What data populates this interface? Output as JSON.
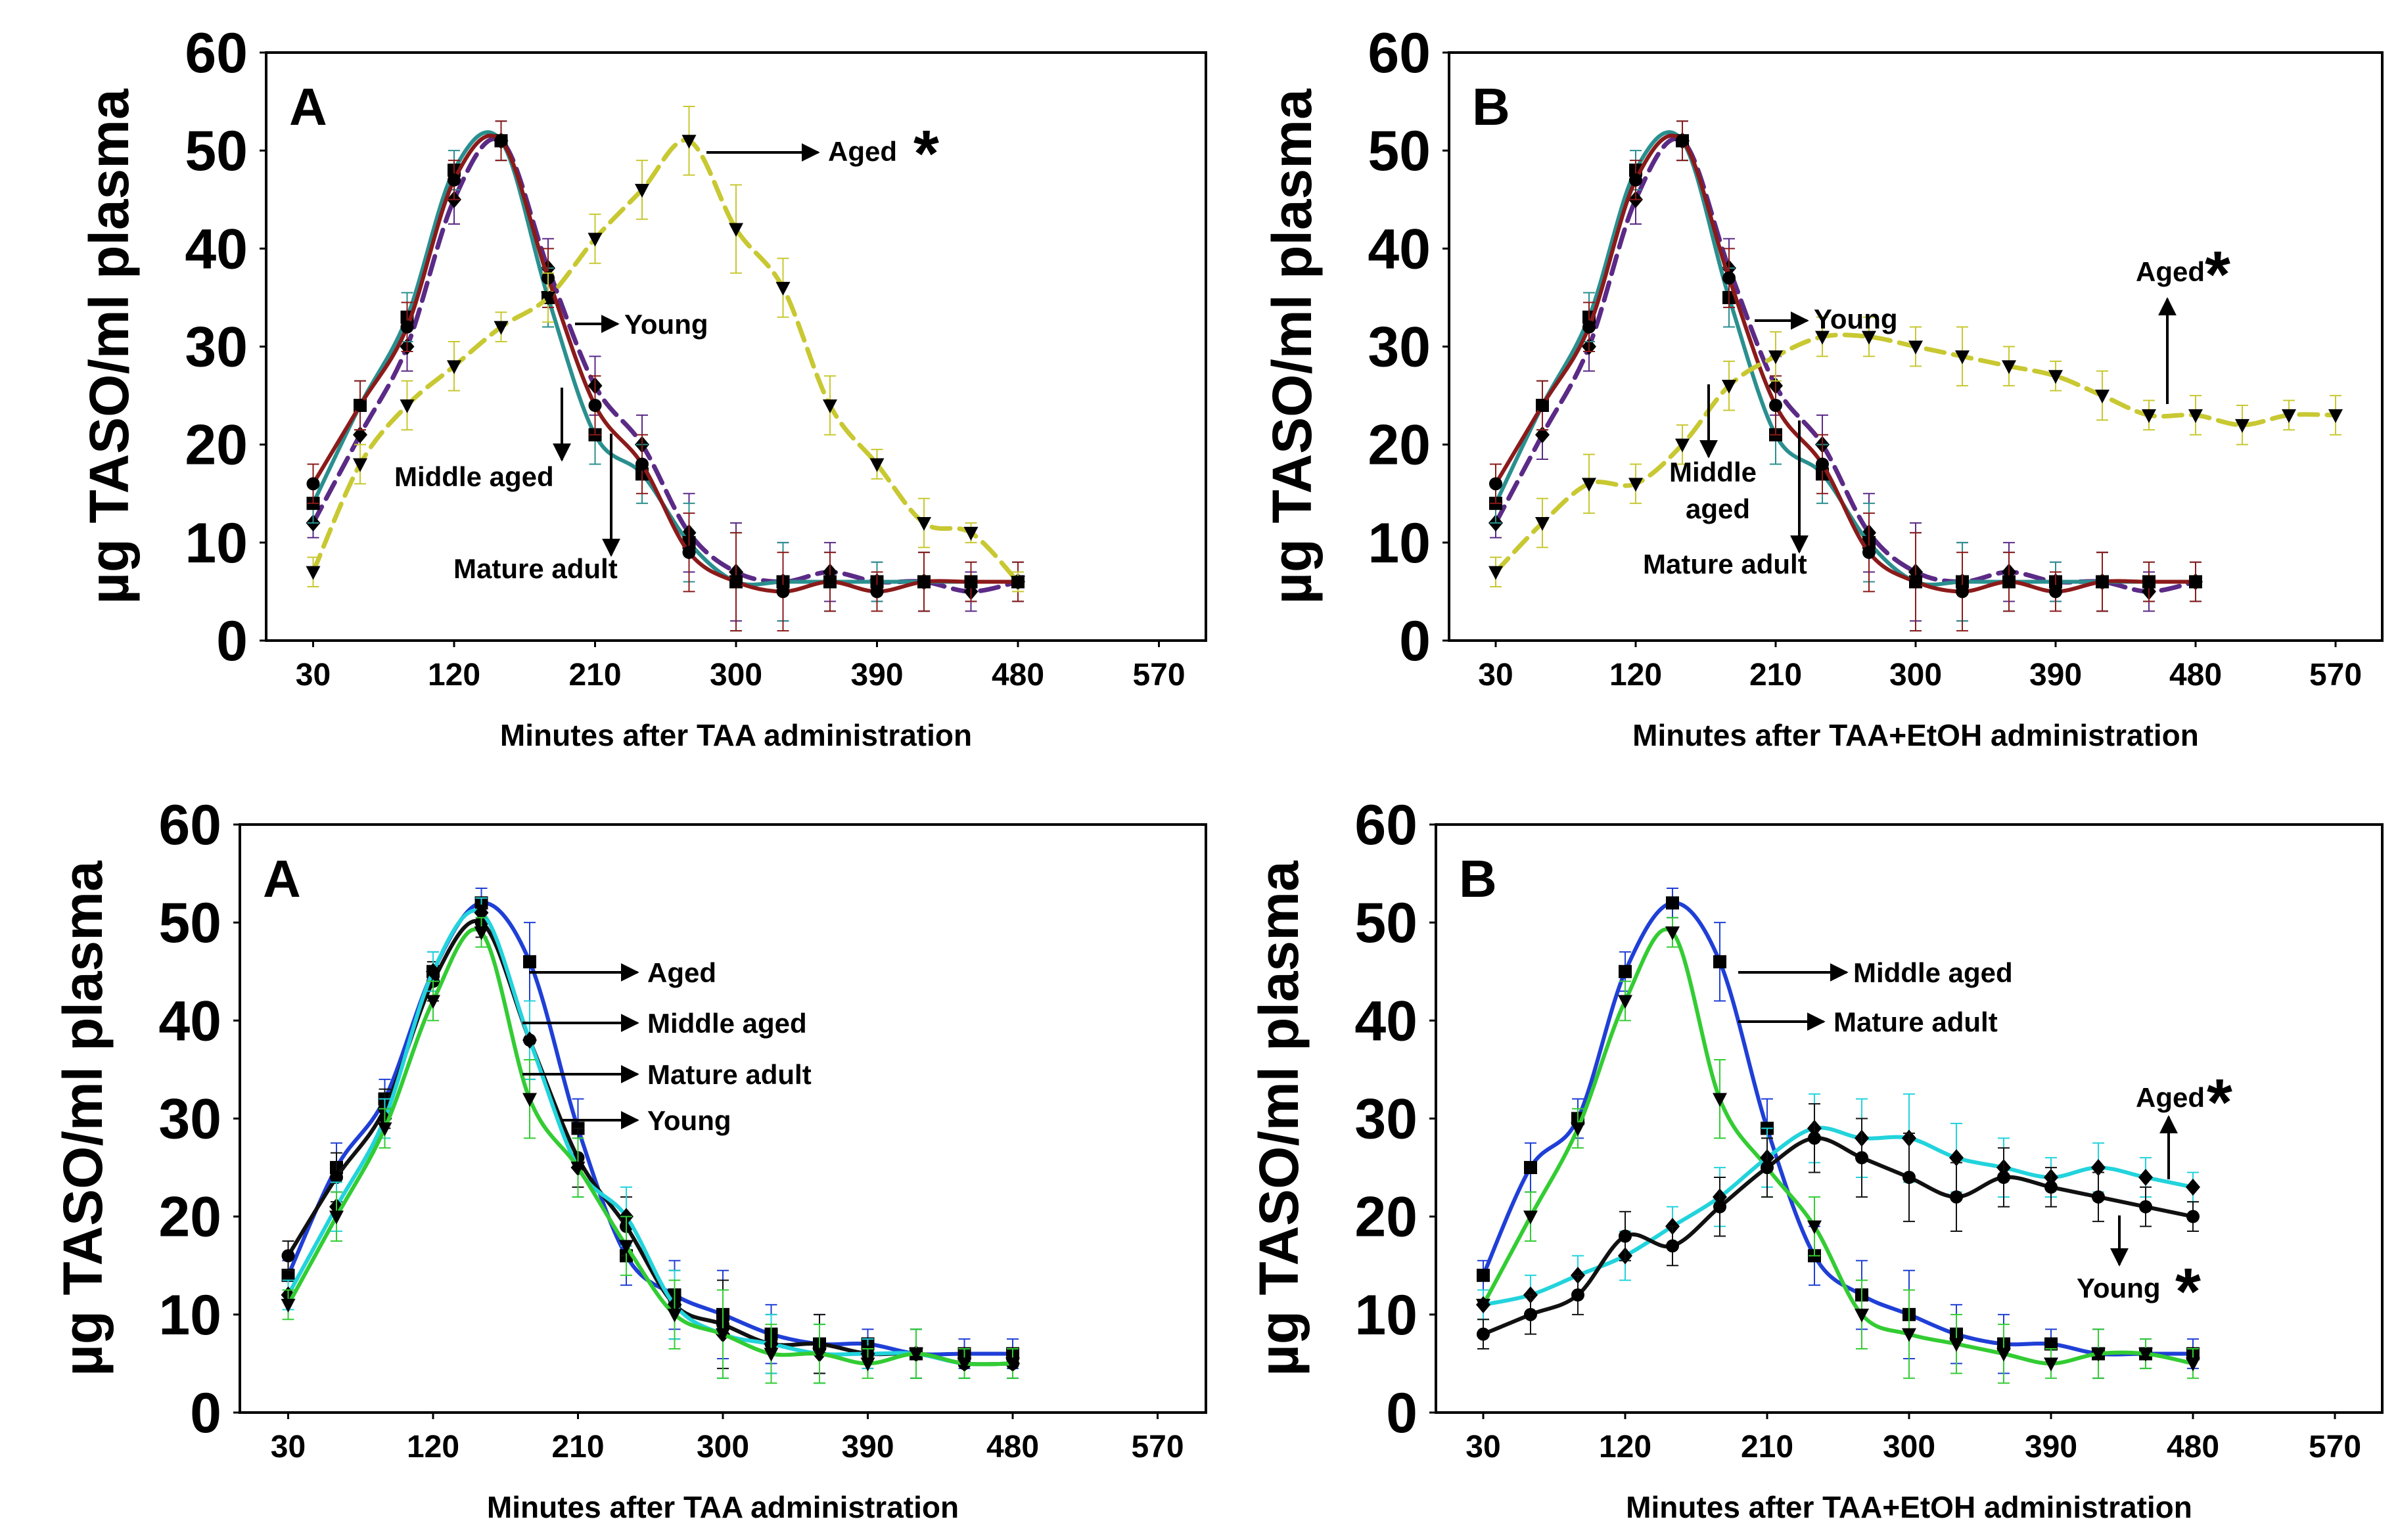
{
  "chart_data": [
    {
      "type": "line",
      "panel_label": "A",
      "ylabel": "µg TASO/ml plasma",
      "xlabel": "Minutes after TAA administration",
      "xlim": [
        0,
        600
      ],
      "ylim": [
        0,
        60
      ],
      "xticks": [
        30,
        120,
        210,
        300,
        390,
        480,
        570
      ],
      "yticks": [
        0,
        10,
        20,
        30,
        40,
        50,
        60
      ],
      "series": [
        {
          "name": "Young",
          "color": "#5b2a86",
          "dash": true,
          "marker": "diamond",
          "x": [
            30,
            60,
            90,
            120,
            150,
            180,
            210,
            240,
            270,
            300,
            330,
            360,
            390,
            420,
            450,
            480
          ],
          "y": [
            12,
            21,
            30,
            45,
            51,
            38,
            26,
            20,
            11,
            7,
            6,
            7,
            6,
            6,
            5,
            6
          ],
          "err": [
            1.5,
            2.5,
            2.5,
            2.5,
            2,
            3,
            3,
            3,
            4,
            5,
            4,
            3,
            2,
            3,
            2,
            2
          ]
        },
        {
          "name": "Middle aged",
          "color": "#2a8f8f",
          "dash": false,
          "marker": "square",
          "x": [
            30,
            60,
            90,
            120,
            150,
            180,
            210,
            240,
            270,
            300,
            330,
            360,
            390,
            420,
            450,
            480
          ],
          "y": [
            14,
            24,
            33,
            48,
            51,
            35,
            21,
            17,
            10,
            6,
            6,
            6,
            6,
            6,
            6,
            6
          ],
          "err": [
            2,
            2.5,
            2.5,
            2,
            2,
            3,
            3,
            3,
            4,
            5,
            4,
            3,
            2,
            3,
            2,
            2
          ]
        },
        {
          "name": "Mature adult",
          "color": "#8b1a1a",
          "dash": false,
          "marker": "circle",
          "x": [
            30,
            60,
            90,
            120,
            150,
            180,
            210,
            240,
            270,
            300,
            330,
            360,
            390,
            420,
            450,
            480
          ],
          "y": [
            16,
            24,
            32,
            47,
            51,
            37,
            24,
            18,
            9,
            6,
            5,
            6,
            5,
            6,
            6,
            6
          ],
          "err": [
            2,
            2.5,
            2.5,
            2,
            2,
            3,
            3,
            3,
            4,
            5,
            4,
            3,
            2,
            3,
            2,
            2
          ]
        },
        {
          "name": "Aged",
          "color": "#c8c832",
          "dash": true,
          "marker": "triangle",
          "x": [
            30,
            60,
            90,
            120,
            150,
            180,
            210,
            240,
            270,
            300,
            330,
            360,
            390,
            420,
            450,
            480
          ],
          "y": [
            7,
            18,
            24,
            28,
            32,
            35,
            41,
            46,
            51,
            42,
            36,
            24,
            18,
            12,
            11,
            6
          ],
          "err": [
            1.5,
            2,
            2.5,
            2.5,
            1.5,
            2.5,
            2.5,
            3,
            3.5,
            4.5,
            3,
            3,
            1.5,
            2.5,
            1,
            1
          ]
        }
      ],
      "annotations": [
        {
          "text": "Aged",
          "star": true
        },
        {
          "text": "Young",
          "star": false
        },
        {
          "text": "Middle aged",
          "star": false
        },
        {
          "text": "Mature adult",
          "star": false
        }
      ]
    },
    {
      "type": "line",
      "panel_label": "B",
      "ylabel": "µg TASO/ml plasma",
      "xlabel": "Minutes after TAA+EtOH administration",
      "xlim": [
        0,
        600
      ],
      "ylim": [
        0,
        60
      ],
      "xticks": [
        30,
        120,
        210,
        300,
        390,
        480,
        570
      ],
      "yticks": [
        0,
        10,
        20,
        30,
        40,
        50,
        60
      ],
      "series": [
        {
          "name": "Young",
          "color": "#5b2a86",
          "dash": true,
          "marker": "diamond",
          "x": [
            30,
            60,
            90,
            120,
            150,
            180,
            210,
            240,
            270,
            300,
            330,
            360,
            390,
            420,
            450,
            480
          ],
          "y": [
            12,
            21,
            30,
            45,
            51,
            38,
            26,
            20,
            11,
            7,
            6,
            7,
            6,
            6,
            5,
            6
          ],
          "err": [
            1.5,
            2.5,
            2.5,
            2.5,
            2,
            3,
            3,
            3,
            4,
            5,
            4,
            3,
            2,
            3,
            2,
            2
          ]
        },
        {
          "name": "Middle aged",
          "color": "#2a8f8f",
          "dash": false,
          "marker": "square",
          "x": [
            30,
            60,
            90,
            120,
            150,
            180,
            210,
            240,
            270,
            300,
            330,
            360,
            390,
            420,
            450,
            480
          ],
          "y": [
            14,
            24,
            33,
            48,
            51,
            35,
            21,
            17,
            10,
            6,
            6,
            6,
            6,
            6,
            6,
            6
          ],
          "err": [
            2,
            2.5,
            2.5,
            2,
            2,
            3,
            3,
            3,
            4,
            5,
            4,
            3,
            2,
            3,
            2,
            2
          ]
        },
        {
          "name": "Mature adult",
          "color": "#8b1a1a",
          "dash": false,
          "marker": "circle",
          "x": [
            30,
            60,
            90,
            120,
            150,
            180,
            210,
            240,
            270,
            300,
            330,
            360,
            390,
            420,
            450,
            480
          ],
          "y": [
            16,
            24,
            32,
            47,
            51,
            37,
            24,
            18,
            9,
            6,
            5,
            6,
            5,
            6,
            6,
            6
          ],
          "err": [
            2,
            2.5,
            2.5,
            2,
            2,
            3,
            3,
            3,
            4,
            5,
            4,
            3,
            2,
            3,
            2,
            2
          ]
        },
        {
          "name": "Aged",
          "color": "#c8c832",
          "dash": true,
          "marker": "triangle",
          "x": [
            30,
            60,
            90,
            120,
            150,
            180,
            210,
            240,
            270,
            300,
            330,
            360,
            390,
            420,
            450,
            480,
            510,
            540,
            570
          ],
          "y": [
            7,
            12,
            16,
            16,
            20,
            26,
            29,
            31,
            31,
            30,
            29,
            28,
            27,
            25,
            23,
            23,
            22,
            23,
            23
          ],
          "err": [
            1.5,
            2.5,
            3,
            2,
            2,
            2.5,
            2.5,
            2,
            2,
            2,
            3,
            2,
            1.5,
            2.5,
            1.5,
            2,
            2,
            1.5,
            2
          ]
        }
      ],
      "annotations": [
        {
          "text": "Aged",
          "star": true
        },
        {
          "text": "Young",
          "star": false
        },
        {
          "text": "Middle aged",
          "star": false
        },
        {
          "text": "Mature adult",
          "star": false
        }
      ]
    },
    {
      "type": "line",
      "panel_label": "A",
      "ylabel": "µg TASO/ml plasma",
      "xlabel": "Minutes after TAA administration",
      "xlim": [
        0,
        600
      ],
      "ylim": [
        0,
        60
      ],
      "xticks": [
        30,
        120,
        210,
        300,
        390,
        480,
        570
      ],
      "yticks": [
        0,
        10,
        20,
        30,
        40,
        50,
        60
      ],
      "series": [
        {
          "name": "Aged",
          "color": "#1f3fd6",
          "dash": false,
          "marker": "square",
          "x": [
            30,
            60,
            90,
            120,
            150,
            180,
            210,
            240,
            270,
            300,
            330,
            360,
            390,
            420,
            450,
            480
          ],
          "y": [
            14,
            25,
            32,
            45,
            52,
            46,
            29,
            16,
            12,
            10,
            8,
            7,
            7,
            6,
            6,
            6
          ],
          "err": [
            1.5,
            2.5,
            2,
            2,
            1.5,
            4,
            3,
            3,
            3.5,
            4.5,
            3,
            3,
            1.5,
            2.5,
            1.5,
            1.5
          ]
        },
        {
          "name": "Middle aged",
          "color": "#111111",
          "dash": false,
          "marker": "circle",
          "x": [
            30,
            60,
            90,
            120,
            150,
            180,
            210,
            240,
            270,
            300,
            330,
            360,
            390,
            420,
            450,
            480
          ],
          "y": [
            16,
            24,
            31,
            44,
            50,
            38,
            26,
            19,
            11,
            9,
            7,
            7,
            6,
            6,
            5,
            5
          ],
          "err": [
            1.5,
            2.5,
            2,
            2,
            1.5,
            4,
            3,
            3,
            3.5,
            4.5,
            3,
            3,
            1.5,
            2.5,
            1.5,
            1.5
          ]
        },
        {
          "name": "Mature adult",
          "color": "#22d3dc",
          "dash": false,
          "marker": "diamond",
          "x": [
            30,
            60,
            90,
            120,
            150,
            180,
            210,
            240,
            270,
            300,
            330,
            360,
            390,
            420,
            450,
            480
          ],
          "y": [
            12,
            21,
            30,
            45,
            51,
            38,
            25,
            20,
            11,
            8,
            7,
            6,
            6,
            6,
            5,
            5
          ],
          "err": [
            1.5,
            2.5,
            2,
            2,
            1.5,
            4,
            3,
            3,
            3.5,
            4.5,
            3,
            3,
            1.5,
            2.5,
            1.5,
            1.5
          ]
        },
        {
          "name": "Young",
          "color": "#33cc33",
          "dash": false,
          "marker": "triangle",
          "x": [
            30,
            60,
            90,
            120,
            150,
            180,
            210,
            240,
            270,
            300,
            330,
            360,
            390,
            420,
            450,
            480
          ],
          "y": [
            11,
            20,
            29,
            42,
            49,
            32,
            25,
            17,
            10,
            8,
            6,
            6,
            5,
            6,
            5,
            5
          ],
          "err": [
            1.5,
            2.5,
            2,
            2,
            1.5,
            4,
            3,
            3,
            3.5,
            4.5,
            3,
            3,
            1.5,
            2.5,
            1.5,
            1.5
          ]
        }
      ],
      "annotations": [
        {
          "text": "Aged",
          "star": false
        },
        {
          "text": "Middle aged",
          "star": false
        },
        {
          "text": "Mature adult",
          "star": false
        },
        {
          "text": "Young",
          "star": false
        }
      ]
    },
    {
      "type": "line",
      "panel_label": "B",
      "ylabel": "µg TASO/ml plasma",
      "xlabel": "Minutes after TAA+EtOH  administration",
      "xlim": [
        0,
        600
      ],
      "ylim": [
        0,
        60
      ],
      "xticks": [
        30,
        120,
        210,
        300,
        390,
        480,
        570
      ],
      "yticks": [
        0,
        10,
        20,
        30,
        40,
        50,
        60
      ],
      "series": [
        {
          "name": "Middle aged",
          "color": "#1f3fd6",
          "dash": false,
          "marker": "square",
          "x": [
            30,
            60,
            90,
            120,
            150,
            180,
            210,
            240,
            270,
            300,
            330,
            360,
            390,
            420,
            450,
            480
          ],
          "y": [
            14,
            25,
            30,
            45,
            52,
            46,
            29,
            16,
            12,
            10,
            8,
            7,
            7,
            6,
            6,
            6
          ],
          "err": [
            1.5,
            2.5,
            2,
            2,
            1.5,
            4,
            3,
            3,
            3.5,
            4.5,
            3,
            3,
            1.5,
            2.5,
            1.5,
            1.5
          ]
        },
        {
          "name": "Mature adult",
          "color": "#33cc33",
          "dash": false,
          "marker": "triangle",
          "x": [
            30,
            60,
            90,
            120,
            150,
            180,
            210,
            240,
            270,
            300,
            330,
            360,
            390,
            420,
            450,
            480
          ],
          "y": [
            11,
            20,
            29,
            42,
            49,
            32,
            25,
            19,
            10,
            8,
            7,
            6,
            5,
            6,
            6,
            5
          ],
          "err": [
            1.5,
            2.5,
            2,
            2,
            1.5,
            4,
            3,
            3,
            3.5,
            4.5,
            3,
            3,
            1.5,
            2.5,
            1.5,
            1.5
          ]
        },
        {
          "name": "Aged",
          "color": "#22d3dc",
          "dash": false,
          "marker": "diamond",
          "x": [
            30,
            60,
            90,
            120,
            150,
            180,
            210,
            240,
            270,
            300,
            330,
            360,
            390,
            420,
            450,
            480
          ],
          "y": [
            11,
            12,
            14,
            16,
            19,
            22,
            26,
            29,
            28,
            28,
            26,
            25,
            24,
            25,
            24,
            23
          ],
          "err": [
            1.5,
            2,
            2,
            2.5,
            2,
            3,
            3,
            3.5,
            4,
            4.5,
            3.5,
            3,
            2,
            2.5,
            2,
            1.5
          ]
        },
        {
          "name": "Young",
          "color": "#111111",
          "dash": false,
          "marker": "circle",
          "x": [
            30,
            60,
            90,
            120,
            150,
            180,
            210,
            240,
            270,
            300,
            330,
            360,
            390,
            420,
            450,
            480
          ],
          "y": [
            8,
            10,
            12,
            18,
            17,
            21,
            25,
            28,
            26,
            24,
            22,
            24,
            23,
            22,
            21,
            20
          ],
          "err": [
            1.5,
            2,
            2,
            2.5,
            2,
            3,
            3,
            3.5,
            4,
            4.5,
            3.5,
            3,
            2,
            2.5,
            2,
            1.5
          ]
        }
      ],
      "annotations": [
        {
          "text": "Middle aged",
          "star": false
        },
        {
          "text": "Mature adult",
          "star": false
        },
        {
          "text": "Aged",
          "star": true
        },
        {
          "text": "Young",
          "star": true
        }
      ]
    }
  ]
}
